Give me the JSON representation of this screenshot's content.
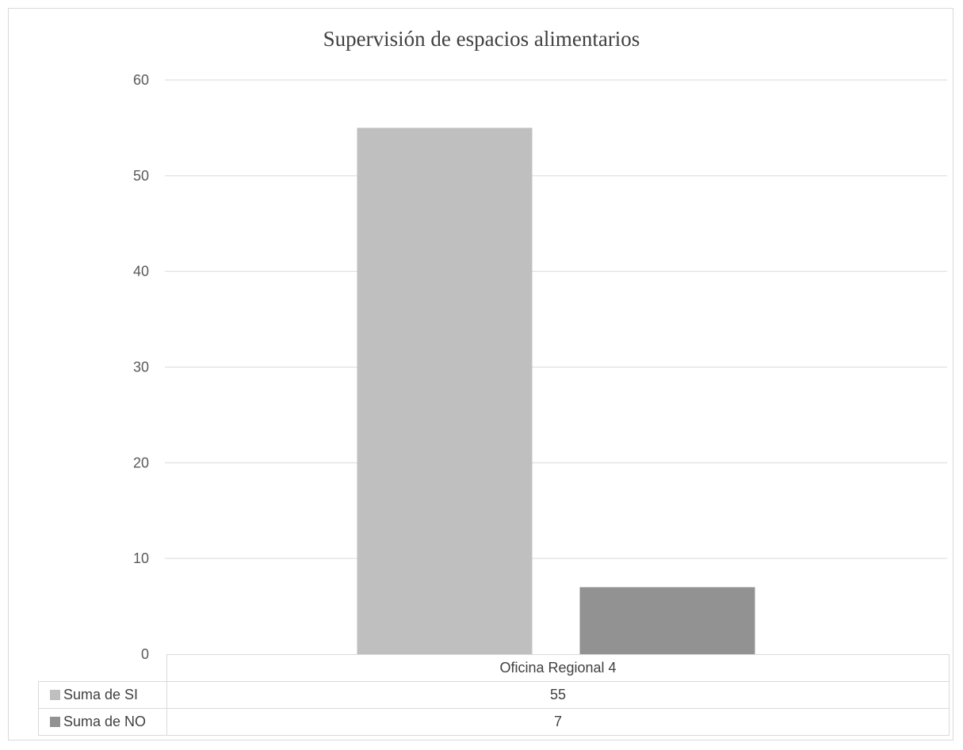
{
  "chart_data": {
    "type": "bar",
    "title": "Supervisión de espacios alimentarios",
    "categories": [
      "Oficina Regional 4"
    ],
    "series": [
      {
        "name": "Suma de SI",
        "values": [
          55
        ],
        "color": "#bfbfbf"
      },
      {
        "name": "Suma de NO",
        "values": [
          7
        ],
        "color": "#929292"
      }
    ],
    "ylim": [
      0,
      60
    ],
    "yticks": [
      0,
      10,
      20,
      30,
      40,
      50,
      60
    ],
    "grid": true,
    "legend": "data-table"
  },
  "table": {
    "category": "Oficina Regional 4",
    "rows": [
      {
        "label": "Suma de SI",
        "value": "55"
      },
      {
        "label": "Suma de NO",
        "value": "7"
      }
    ]
  }
}
